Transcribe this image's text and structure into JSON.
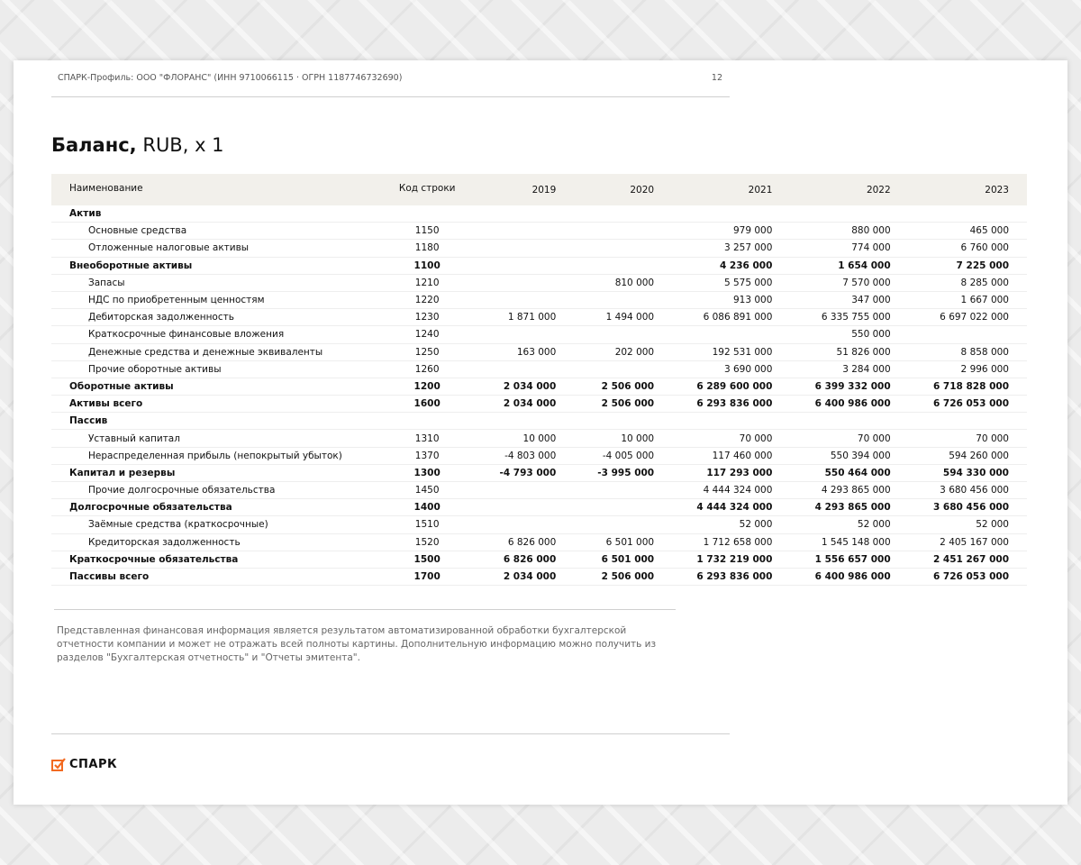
{
  "header": {
    "text": "СПАРК-Профиль: ООО \"ФЛОРАНС\" (ИНН 9710066115 · ОГРН 1187746732690)",
    "page_number": "12"
  },
  "title": {
    "bold": "Баланс,",
    "rest": " RUB, x 1"
  },
  "table": {
    "columns": [
      "Наименование",
      "Код строки",
      "2019",
      "2020",
      "2021",
      "2022",
      "2023"
    ],
    "rows": [
      {
        "name": "Актив",
        "code": "",
        "values": [
          "",
          "",
          "",
          "",
          ""
        ],
        "style": "bold"
      },
      {
        "name": "Основные средства",
        "code": "1150",
        "values": [
          "",
          "",
          "979 000",
          "880 000",
          "465 000"
        ],
        "style": "indent"
      },
      {
        "name": "Отложенные налоговые активы",
        "code": "1180",
        "values": [
          "",
          "",
          "3 257 000",
          "774 000",
          "6 760 000"
        ],
        "style": "indent"
      },
      {
        "name": "Внеоборотные активы",
        "code": "1100",
        "values": [
          "",
          "",
          "4 236 000",
          "1 654 000",
          "7 225 000"
        ],
        "style": "bold"
      },
      {
        "name": "Запасы",
        "code": "1210",
        "values": [
          "",
          "810 000",
          "5 575 000",
          "7 570 000",
          "8 285 000"
        ],
        "style": "indent"
      },
      {
        "name": "НДС по приобретенным ценностям",
        "code": "1220",
        "values": [
          "",
          "",
          "913 000",
          "347 000",
          "1 667 000"
        ],
        "style": "indent"
      },
      {
        "name": "Дебиторская задолженность",
        "code": "1230",
        "values": [
          "1 871 000",
          "1 494 000",
          "6 086 891 000",
          "6 335 755 000",
          "6 697 022 000"
        ],
        "style": "indent"
      },
      {
        "name": "Краткосрочные финансовые вложения",
        "code": "1240",
        "values": [
          "",
          "",
          "",
          "550 000",
          ""
        ],
        "style": "indent"
      },
      {
        "name": "Денежные средства и денежные эквиваленты",
        "code": "1250",
        "values": [
          "163 000",
          "202 000",
          "192 531 000",
          "51 826 000",
          "8 858 000"
        ],
        "style": "indent"
      },
      {
        "name": "Прочие оборотные активы",
        "code": "1260",
        "values": [
          "",
          "",
          "3 690 000",
          "3 284 000",
          "2 996 000"
        ],
        "style": "indent"
      },
      {
        "name": "Оборотные активы",
        "code": "1200",
        "values": [
          "2 034 000",
          "2 506 000",
          "6 289 600 000",
          "6 399 332 000",
          "6 718 828 000"
        ],
        "style": "bold"
      },
      {
        "name": "Активы всего",
        "code": "1600",
        "values": [
          "2 034 000",
          "2 506 000",
          "6 293 836 000",
          "6 400 986 000",
          "6 726 053 000"
        ],
        "style": "bold"
      },
      {
        "name": "Пассив",
        "code": "",
        "values": [
          "",
          "",
          "",
          "",
          ""
        ],
        "style": "bold"
      },
      {
        "name": "Уставный капитал",
        "code": "1310",
        "values": [
          "10 000",
          "10 000",
          "70 000",
          "70 000",
          "70 000"
        ],
        "style": "indent"
      },
      {
        "name": "Нераспределенная прибыль (непокрытый убыток)",
        "code": "1370",
        "values": [
          "-4 803 000",
          "-4 005 000",
          "117 460 000",
          "550 394 000",
          "594 260 000"
        ],
        "style": "indent"
      },
      {
        "name": "Капитал и резервы",
        "code": "1300",
        "values": [
          "-4 793 000",
          "-3 995 000",
          "117 293 000",
          "550 464 000",
          "594 330 000"
        ],
        "style": "bold"
      },
      {
        "name": "Прочие долгосрочные обязательства",
        "code": "1450",
        "values": [
          "",
          "",
          "4 444 324 000",
          "4 293 865 000",
          "3 680 456 000"
        ],
        "style": "indent"
      },
      {
        "name": "Долгосрочные обязательства",
        "code": "1400",
        "values": [
          "",
          "",
          "4 444 324 000",
          "4 293 865 000",
          "3 680 456 000"
        ],
        "style": "bold"
      },
      {
        "name": "Заёмные средства (краткосрочные)",
        "code": "1510",
        "values": [
          "",
          "",
          "52 000",
          "52 000",
          "52 000"
        ],
        "style": "indent"
      },
      {
        "name": "Кредиторская задолженность",
        "code": "1520",
        "values": [
          "6 826 000",
          "6 501 000",
          "1 712 658 000",
          "1 545 148 000",
          "2 405 167 000"
        ],
        "style": "indent"
      },
      {
        "name": "Краткосрочные обязательства",
        "code": "1500",
        "values": [
          "6 826 000",
          "6 501 000",
          "1 732 219 000",
          "1 556 657 000",
          "2 451 267 000"
        ],
        "style": "bold"
      },
      {
        "name": "Пассивы всего",
        "code": "1700",
        "values": [
          "2 034 000",
          "2 506 000",
          "6 293 836 000",
          "6 400 986 000",
          "6 726 053 000"
        ],
        "style": "bold"
      }
    ]
  },
  "note": "Представленная финансовая информация является результатом автоматизированной обработки бухгалтерской отчетности компании и может не отражать всей полноты картины. Дополнительную информацию можно получить из разделов \"Бухгалтерская отчетность\" и \"Отчеты эмитента\".",
  "footer": {
    "logo_text": "СПАРК",
    "logo_icon": "checkbox-check-icon",
    "brand_color": "#f26a21"
  }
}
